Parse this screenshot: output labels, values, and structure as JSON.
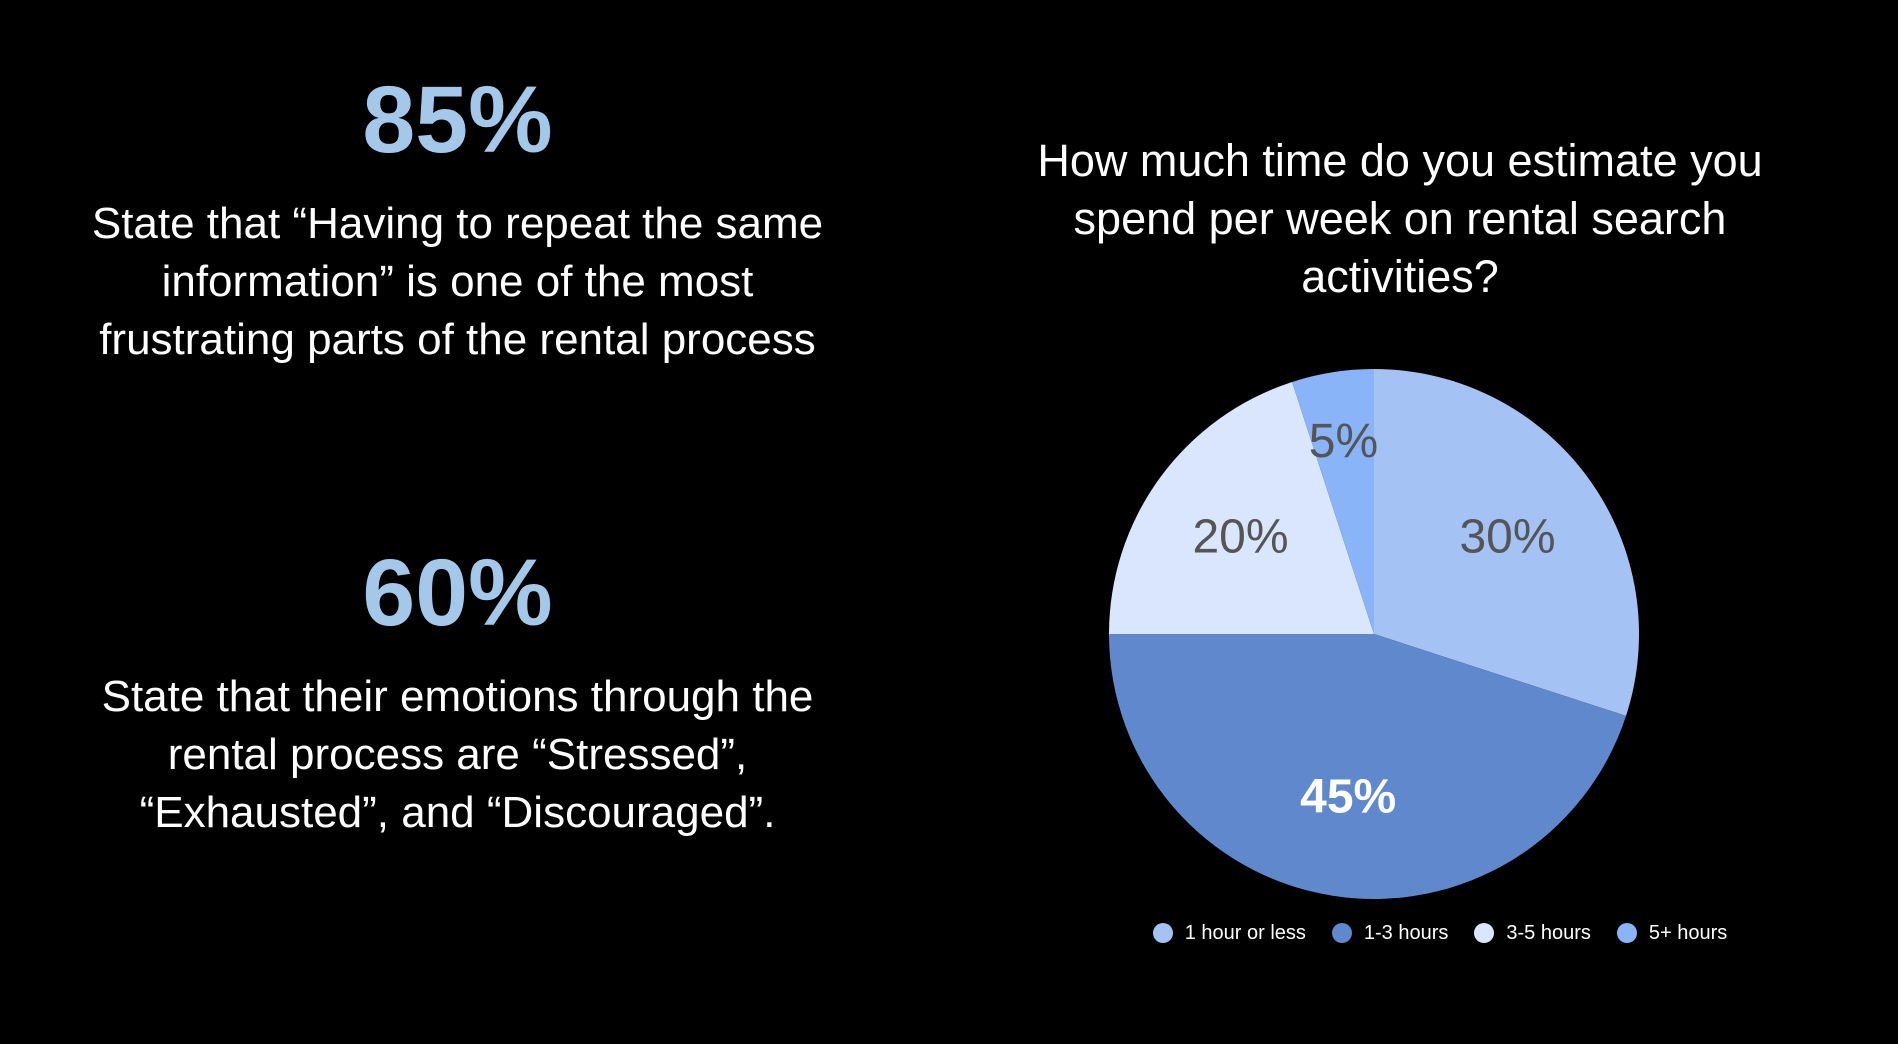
{
  "stats": [
    {
      "value": "85%",
      "text": "State that “Having to repeat the same information” is one of the most frustrating parts of the rental process"
    },
    {
      "value": "60%",
      "text": "State that their emotions through the rental process are “Stressed”, “Exhausted”, and “Discouraged”."
    }
  ],
  "colors": {
    "stat_accent": "#a4c8ea",
    "background": "#000000"
  },
  "chart_data": {
    "type": "pie",
    "title": "How much time do you estimate you spend per week on rental search activities?",
    "categories": [
      "1 hour or less",
      "1-3 hours",
      "3-5 hours",
      "5+ hours"
    ],
    "values": [
      30,
      45,
      20,
      5
    ],
    "labels": [
      "30%",
      "45%",
      "20%",
      "5%"
    ],
    "colors": [
      "#a4c2f4",
      "#6088cc",
      "#d9e6fd",
      "#8ab4f8"
    ],
    "label_colors": [
      "#555555",
      "#ffffff",
      "#555555",
      "#555555"
    ],
    "label_bold": [
      false,
      true,
      false,
      false
    ],
    "legend_position": "bottom"
  }
}
